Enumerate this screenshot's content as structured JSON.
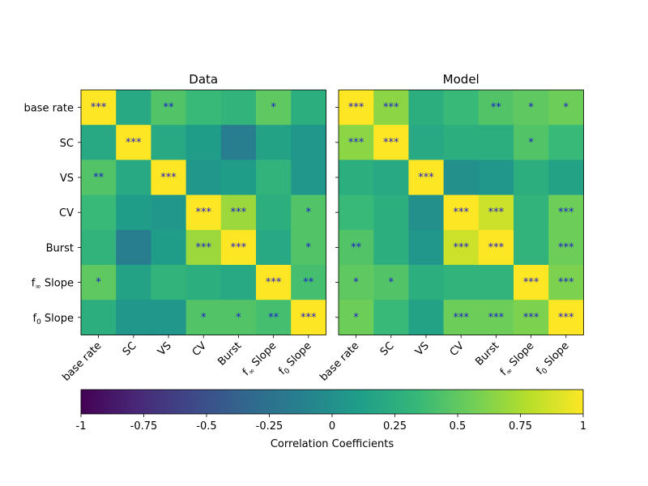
{
  "chart_data": [
    {
      "type": "heatmap",
      "title": "Data",
      "rows": [
        "base rate",
        "SC",
        "VS",
        "CV",
        "Burst",
        "f∞ Slope",
        "f0 Slope"
      ],
      "cols": [
        "base rate",
        "SC",
        "VS",
        "CV",
        "Burst",
        "f∞ Slope",
        "f0 Slope"
      ],
      "values": [
        [
          1.0,
          0.2,
          0.45,
          0.35,
          0.3,
          0.5,
          0.25
        ],
        [
          0.2,
          1.0,
          0.2,
          0.1,
          -0.15,
          0.15,
          0.05
        ],
        [
          0.45,
          0.2,
          1.0,
          0.05,
          0.1,
          0.3,
          0.05
        ],
        [
          0.35,
          0.1,
          0.05,
          1.0,
          0.7,
          0.25,
          0.45
        ],
        [
          0.3,
          -0.15,
          0.1,
          0.7,
          1.0,
          0.2,
          0.45
        ],
        [
          0.5,
          0.15,
          0.3,
          0.25,
          0.2,
          1.0,
          0.4
        ],
        [
          0.25,
          0.05,
          0.05,
          0.45,
          0.45,
          0.4,
          1.0
        ]
      ],
      "stars": [
        [
          "***",
          "",
          "**",
          "",
          "",
          "*",
          ""
        ],
        [
          "",
          "***",
          "",
          "",
          "",
          "",
          ""
        ],
        [
          "**",
          "",
          "***",
          "",
          "",
          "",
          ""
        ],
        [
          "",
          "",
          "",
          "***",
          "***",
          "",
          "*"
        ],
        [
          "",
          "",
          "",
          "***",
          "***",
          "",
          "*"
        ],
        [
          "*",
          "",
          "",
          "",
          "",
          "***",
          "**"
        ],
        [
          "",
          "",
          "",
          "*",
          "*",
          "**",
          "***"
        ]
      ],
      "show_row_labels": true
    },
    {
      "type": "heatmap",
      "title": "Model",
      "rows": [
        "base rate",
        "SC",
        "VS",
        "CV",
        "Burst",
        "f∞ Slope",
        "f0 Slope"
      ],
      "cols": [
        "base rate",
        "SC",
        "VS",
        "CV",
        "Burst",
        "f∞ Slope",
        "f0 Slope"
      ],
      "values": [
        [
          1.0,
          0.65,
          0.25,
          0.35,
          0.45,
          0.5,
          0.55
        ],
        [
          0.65,
          1.0,
          0.2,
          0.25,
          0.25,
          0.45,
          0.35
        ],
        [
          0.25,
          0.2,
          1.0,
          0.0,
          0.05,
          0.25,
          0.15
        ],
        [
          0.35,
          0.25,
          0.0,
          1.0,
          0.85,
          0.3,
          0.55
        ],
        [
          0.45,
          0.25,
          0.05,
          0.85,
          1.0,
          0.3,
          0.55
        ],
        [
          0.5,
          0.45,
          0.25,
          0.3,
          0.3,
          1.0,
          0.6
        ],
        [
          0.55,
          0.35,
          0.15,
          0.55,
          0.55,
          0.6,
          1.0
        ]
      ],
      "stars": [
        [
          "***",
          "***",
          "",
          "",
          "**",
          "*",
          "*"
        ],
        [
          "***",
          "***",
          "",
          "",
          "",
          "*",
          ""
        ],
        [
          "",
          "",
          "***",
          "",
          "",
          "",
          ""
        ],
        [
          "",
          "",
          "",
          "***",
          "***",
          "",
          "***"
        ],
        [
          "**",
          "",
          "",
          "***",
          "***",
          "",
          "***"
        ],
        [
          "*",
          "*",
          "",
          "",
          "",
          "***",
          "***"
        ],
        [
          "*",
          "",
          "",
          "***",
          "***",
          "***",
          "***"
        ]
      ],
      "show_row_labels": false
    }
  ],
  "colorbar": {
    "label": "Correlation Coefficients",
    "min": -1,
    "max": 1,
    "ticks": [
      {
        "value": -1,
        "label": "-1"
      },
      {
        "value": -0.75,
        "label": "-0.75"
      },
      {
        "value": -0.5,
        "label": "-0.5"
      },
      {
        "value": -0.25,
        "label": "-0.25"
      },
      {
        "value": 0,
        "label": "0"
      },
      {
        "value": 0.25,
        "label": "0.25"
      },
      {
        "value": 0.5,
        "label": "0.5"
      },
      {
        "value": 0.75,
        "label": "0.75"
      },
      {
        "value": 1,
        "label": "1"
      }
    ],
    "colormap": "viridis"
  },
  "colors": {
    "star_text": "#1a1acc",
    "viridis": [
      "#440154",
      "#482878",
      "#3e4989",
      "#31688e",
      "#26828e",
      "#1f9e89",
      "#35b779",
      "#6ece58",
      "#b5de2b",
      "#fde725"
    ]
  }
}
